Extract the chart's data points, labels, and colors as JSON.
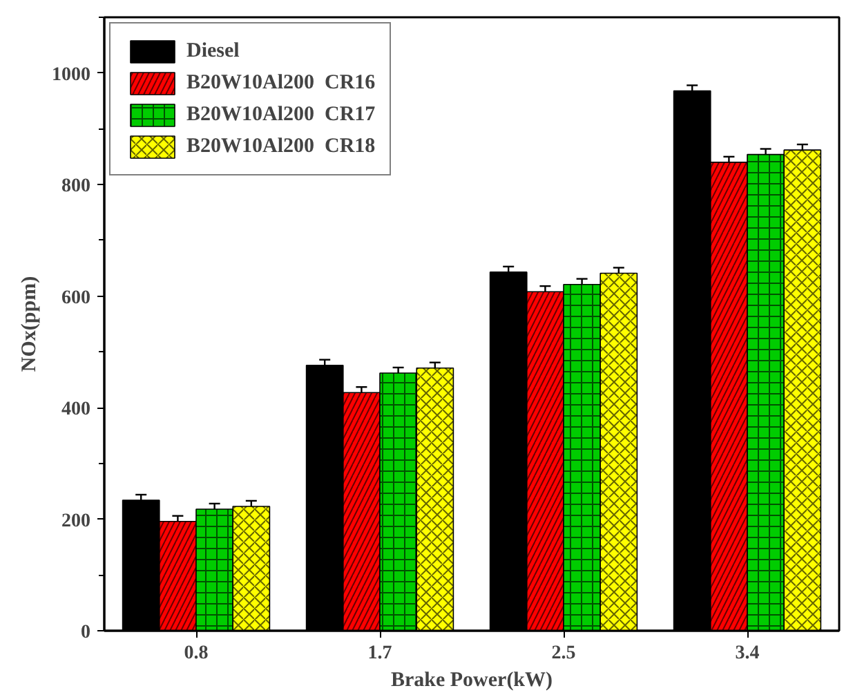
{
  "chart_data": {
    "type": "bar",
    "xlabel": "Brake Power(kW)",
    "ylabel": "NOx(ppm)",
    "categories": [
      "0.8",
      "1.7",
      "2.5",
      "3.4"
    ],
    "series": [
      {
        "name": "Diesel",
        "color": "#000000",
        "values": [
          234,
          476,
          643,
          968
        ],
        "errors": [
          10,
          10,
          10,
          10
        ]
      },
      {
        "name": "B20W10Al200  CR16",
        "color": "#ff0000",
        "values": [
          196,
          427,
          608,
          840
        ],
        "errors": [
          10,
          10,
          10,
          10
        ]
      },
      {
        "name": "B20W10Al200  CR17",
        "color": "#00cc00",
        "values": [
          218,
          462,
          621,
          854
        ],
        "errors": [
          10,
          10,
          10,
          10
        ]
      },
      {
        "name": "B20W10Al200  CR18",
        "color": "#ffff00",
        "values": [
          223,
          471,
          641,
          862
        ],
        "errors": [
          10,
          10,
          10,
          10
        ]
      }
    ],
    "ylim": [
      0,
      1100
    ],
    "yticks": [
      0,
      200,
      400,
      600,
      800,
      1000
    ],
    "grid": false,
    "legend": "top left"
  }
}
